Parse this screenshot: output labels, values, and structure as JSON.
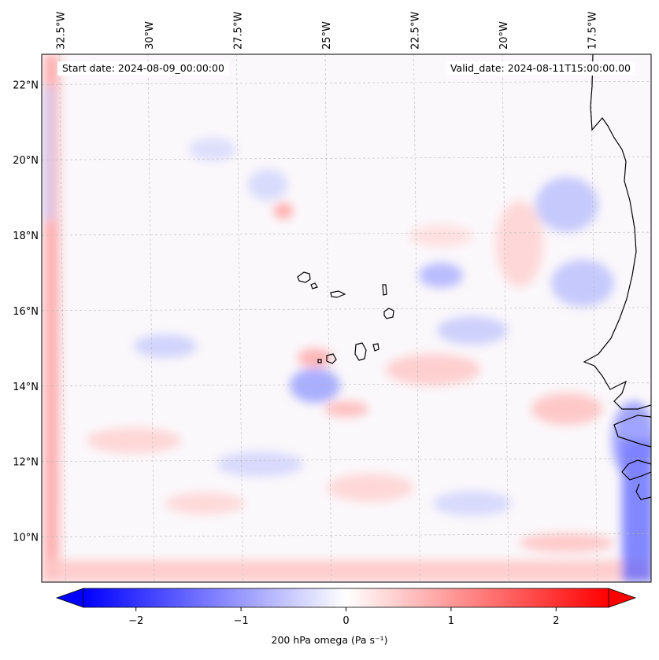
{
  "map": {
    "header": {
      "start_date": "Start date: 2024-08-09_00:00:00",
      "valid_date": "Valid_date: 2024-08-11T15:00:00.00"
    },
    "extent": {
      "lon_min": -33,
      "lon_max": -15.8,
      "lat_min": 8.8,
      "lat_max": 22.8
    },
    "longitude_ticks": [
      {
        "lon": -32.5,
        "label": "32.5°W"
      },
      {
        "lon": -30,
        "label": "30°W"
      },
      {
        "lon": -27.5,
        "label": "27.5°W"
      },
      {
        "lon": -25,
        "label": "25°W"
      },
      {
        "lon": -22.5,
        "label": "22.5°W"
      },
      {
        "lon": -20,
        "label": "20°W"
      },
      {
        "lon": -17.5,
        "label": "17.5°W"
      }
    ],
    "latitude_ticks": [
      {
        "lat": 22,
        "label": "22°N"
      },
      {
        "lat": 20,
        "label": "20°N"
      },
      {
        "lat": 18,
        "label": "18°N"
      },
      {
        "lat": 16,
        "label": "16°N"
      },
      {
        "lat": 14,
        "label": "14°N"
      },
      {
        "lat": 12,
        "label": "12°N"
      },
      {
        "lat": 10,
        "label": "10°N"
      }
    ],
    "features": [
      "Cape Verde islands",
      "West African coastline"
    ],
    "colors": {
      "negative": "#0000ff",
      "zero": "#ffffff",
      "positive": "#ff0000",
      "coast": "#000000",
      "grid": "#b0b0b0"
    }
  },
  "colorbar": {
    "label": "200 hPa omega (Pa s⁻¹)",
    "range": [
      -2.5,
      2.5
    ],
    "ticks": [
      {
        "value": -2,
        "label": "−2"
      },
      {
        "value": -1,
        "label": "−1"
      },
      {
        "value": 0,
        "label": "0"
      },
      {
        "value": 1,
        "label": "1"
      },
      {
        "value": 2,
        "label": "2"
      }
    ],
    "extend": "both"
  }
}
